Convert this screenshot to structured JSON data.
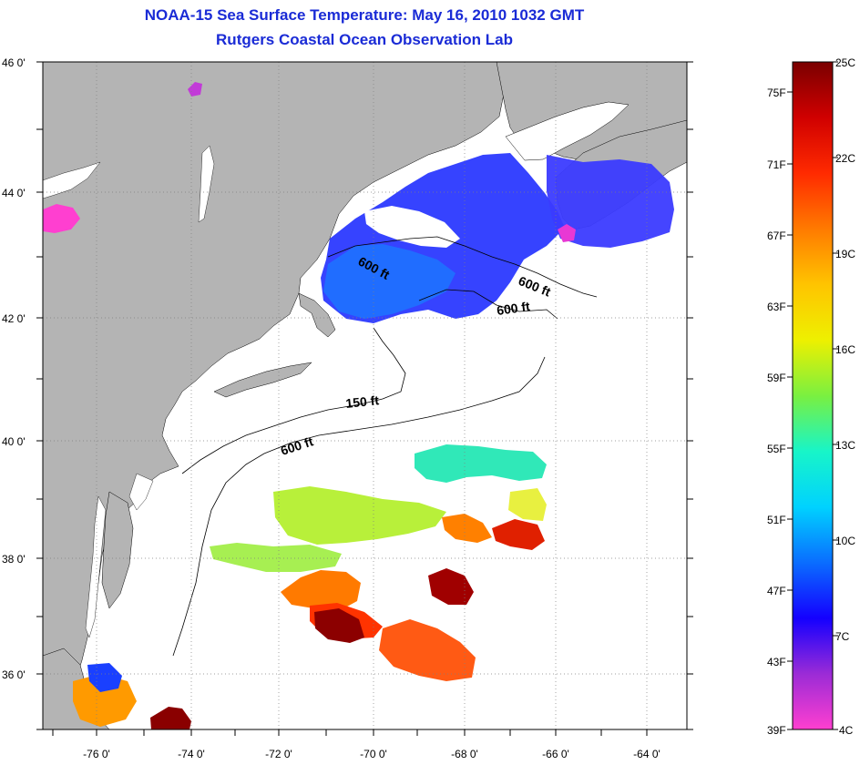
{
  "title": {
    "line1": "NOAA-15 Sea Surface Temperature:  May 16, 2010 1032 GMT",
    "line2": "Rutgers Coastal Ocean Observation Lab"
  },
  "map": {
    "lat_labels": [
      "46 0'",
      "44 0'",
      "42 0'",
      "40 0'",
      "38 0'",
      "36 0'"
    ],
    "lon_labels": [
      "-76 0'",
      "-74 0'",
      "-72 0'",
      "-70 0'",
      "-68 0'",
      "-66 0'",
      "-64 0'"
    ],
    "lat_range": [
      35,
      46
    ],
    "lon_range": [
      -77,
      -63
    ],
    "contour_labels": [
      "600 ft",
      "600 ft",
      "600 ft",
      "150 ft",
      "600 ft"
    ],
    "colors": {
      "land": "#b4b4b4",
      "ocean": "#ffffff"
    }
  },
  "colorbar": {
    "fahrenheit": [
      "75F",
      "71F",
      "67F",
      "63F",
      "59F",
      "55F",
      "51F",
      "47F",
      "43F",
      "39F"
    ],
    "celsius": [
      "25C",
      "22C",
      "19C",
      "16C",
      "13C",
      "10C",
      "7C",
      "4C"
    ],
    "stops": [
      "#ff3fd0",
      "#9b2bd6",
      "#1400ff",
      "#0a6dff",
      "#00d2ff",
      "#18f5c8",
      "#7af040",
      "#eef000",
      "#ffc400",
      "#ff7a00",
      "#ff2a00",
      "#d00000",
      "#7a0000"
    ]
  }
}
